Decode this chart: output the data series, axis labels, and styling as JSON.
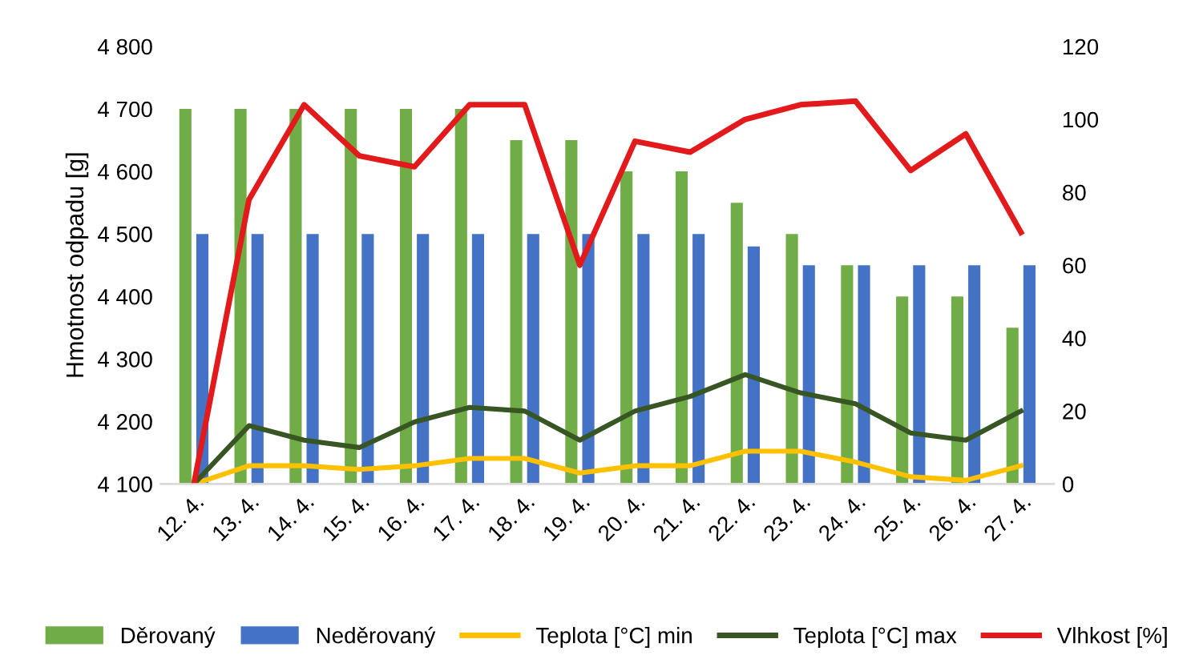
{
  "chart_data": {
    "type": "bar",
    "ylabel": "Hmotnost odpadu [g]",
    "categories": [
      "12. 4.",
      "13. 4.",
      "14. 4.",
      "15. 4.",
      "16. 4.",
      "17. 4.",
      "18. 4.",
      "19. 4.",
      "20. 4.",
      "21. 4.",
      "22. 4.",
      "23. 4.",
      "24. 4.",
      "25. 4.",
      "26. 4.",
      "27. 4."
    ],
    "series": [
      {
        "name": "Děrovaný",
        "color": "#70ad47",
        "values": [
          4700,
          4700,
          4700,
          4700,
          4700,
          4700,
          4650,
          4650,
          4600,
          4600,
          4550,
          4500,
          4450,
          4400,
          4400,
          4350
        ]
      },
      {
        "name": "Neděrovaný",
        "color": "#4472c4",
        "values": [
          4500,
          4500,
          4500,
          4500,
          4500,
          4500,
          4500,
          4500,
          4500,
          4500,
          4480,
          4450,
          4450,
          4450,
          4450,
          4450
        ]
      },
      {
        "name": "Teplota [°C] min",
        "color": "#ffc000",
        "type": "line",
        "axis": "y2",
        "values": [
          0,
          5,
          5,
          4,
          5,
          7,
          7,
          3,
          5,
          5,
          9,
          9,
          6,
          2,
          1,
          5
        ]
      },
      {
        "name": "Teplota [°C] max",
        "color": "#375623",
        "type": "line",
        "axis": "y2",
        "values": [
          0,
          16,
          12,
          10,
          17,
          21,
          20,
          12,
          20,
          24,
          30,
          25,
          22,
          14,
          12,
          20
        ]
      },
      {
        "name": "Vlhkost [%]",
        "color": "#e31a1c",
        "type": "line",
        "axis": "y2",
        "values": [
          0,
          78,
          104,
          90,
          87,
          104,
          104,
          60,
          94,
          91,
          100,
          104,
          105,
          86,
          96,
          69
        ]
      }
    ],
    "ylim": [
      4100,
      4800
    ],
    "yticks": [
      {
        "value": 4100,
        "label": "4 100"
      },
      {
        "value": 4200,
        "label": "4 200"
      },
      {
        "value": 4300,
        "label": "4 300"
      },
      {
        "value": 4400,
        "label": "4 400"
      },
      {
        "value": 4500,
        "label": "4 500"
      },
      {
        "value": 4600,
        "label": "4 600"
      },
      {
        "value": 4700,
        "label": "4 700"
      },
      {
        "value": 4800,
        "label": "4 800"
      }
    ],
    "y2lim": [
      0,
      120
    ],
    "y2ticks": [
      0,
      20,
      40,
      60,
      80,
      100,
      120
    ],
    "grid": false,
    "legend": "bottom",
    "marker": "none",
    "line_style": "solid"
  }
}
